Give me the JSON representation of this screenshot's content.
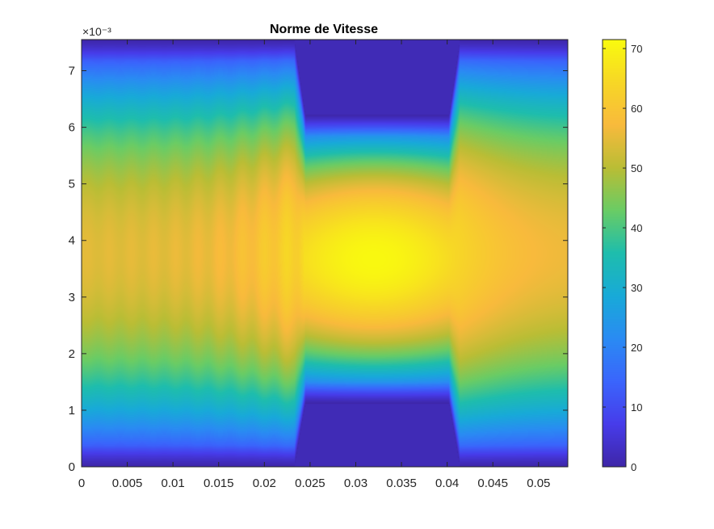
{
  "chart_data": {
    "type": "heatmap",
    "title": "Norme de Vitesse",
    "xlabel": "",
    "ylabel": "",
    "xlim": [
      0,
      0.0532
    ],
    "ylim": [
      0,
      0.00755
    ],
    "x_ticks": [
      "0",
      "0.005",
      "0.01",
      "0.015",
      "0.02",
      "0.025",
      "0.03",
      "0.035",
      "0.04",
      "0.045",
      "0.05"
    ],
    "x_tick_values": [
      0,
      0.005,
      0.01,
      0.015,
      0.02,
      0.025,
      0.03,
      0.035,
      0.04,
      0.045,
      0.05
    ],
    "y_ticks": [
      "0",
      "1",
      "2",
      "3",
      "4",
      "5",
      "6",
      "7"
    ],
    "y_tick_values": [
      0,
      0.001,
      0.002,
      0.003,
      0.004,
      0.005,
      0.006,
      0.007
    ],
    "y_exponent_label": "×10⁻³",
    "colormap": "parula",
    "colorbar": {
      "range": [
        0,
        71.5
      ],
      "ticks": [
        "0",
        "10",
        "20",
        "30",
        "40",
        "50",
        "60",
        "70"
      ],
      "tick_values": [
        0,
        10,
        20,
        30,
        40,
        50,
        60,
        70
      ]
    },
    "field": {
      "description_values": "velocity magnitude, max ~71 at center (x~0.032, y~0.0037), ~0 in obstacle regions",
      "peak_value": 71,
      "peak_x": 0.032,
      "peak_y": 0.0037,
      "obstacles": [
        {
          "x_range": [
            0.0245,
            0.0402
          ],
          "y_range": [
            0.0,
            0.00112
          ]
        },
        {
          "x_range": [
            0.0245,
            0.0402
          ],
          "y_range": [
            0.00622,
            0.00755
          ]
        }
      ]
    }
  }
}
